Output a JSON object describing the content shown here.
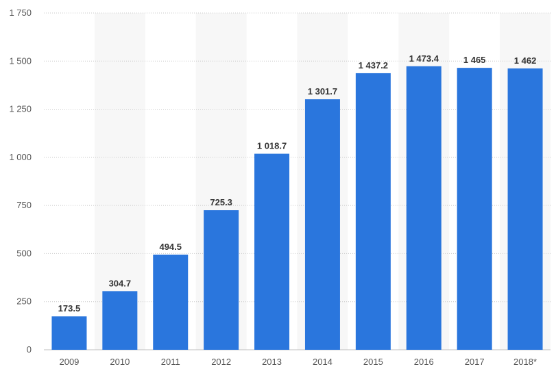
{
  "chart_data": {
    "type": "bar",
    "categories": [
      "2009",
      "2010",
      "2011",
      "2012",
      "2013",
      "2014",
      "2015",
      "2016",
      "2017",
      "2018*"
    ],
    "values": [
      173.5,
      304.7,
      494.5,
      725.3,
      1018.7,
      1301.7,
      1437.2,
      1473.4,
      1465,
      1462
    ],
    "data_labels": [
      "173.5",
      "304.7",
      "494.5",
      "725.3",
      "1 018.7",
      "1 301.7",
      "1 437.2",
      "1 473.4",
      "1 465",
      "1 462"
    ],
    "yticks": [
      0,
      250,
      500,
      750,
      1000,
      1250,
      1500,
      1750
    ],
    "ytick_labels": [
      "0",
      "250",
      "500",
      "750",
      "1 000",
      "1 250",
      "1 500",
      "1 750"
    ],
    "ylim": [
      0,
      1750
    ],
    "grid": true,
    "alternating_band_color": "#f7f7f7",
    "bar_color": "#2a76dd",
    "title": "",
    "xlabel": "",
    "ylabel": ""
  }
}
